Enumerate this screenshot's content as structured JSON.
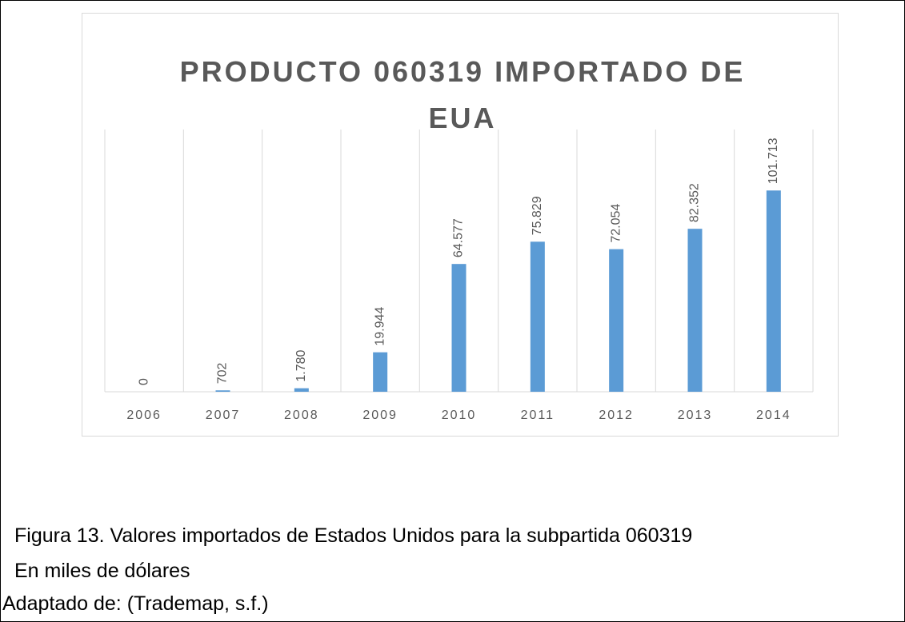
{
  "chart_data": {
    "type": "bar",
    "title": "PRODUCTO 060319 IMPORTADO DE EUA",
    "categories": [
      "2006",
      "2007",
      "2008",
      "2009",
      "2010",
      "2011",
      "2012",
      "2013",
      "2014"
    ],
    "values": [
      0,
      702,
      1780,
      19944,
      64577,
      75829,
      72054,
      82352,
      101713
    ],
    "value_labels": [
      "0",
      "702",
      "1.780",
      "19.944",
      "64.577",
      "75.829",
      "72.054",
      "82.352",
      "101.713"
    ],
    "color": "#5b9bd5",
    "ylim": [
      0,
      120000
    ],
    "grid": true
  },
  "caption": {
    "figure": "Figura 13. Valores importados de Estados Unidos para la subpartida 060319",
    "units": "En miles de dólares",
    "source": "Adaptado de: (Trademap, s.f.)"
  }
}
